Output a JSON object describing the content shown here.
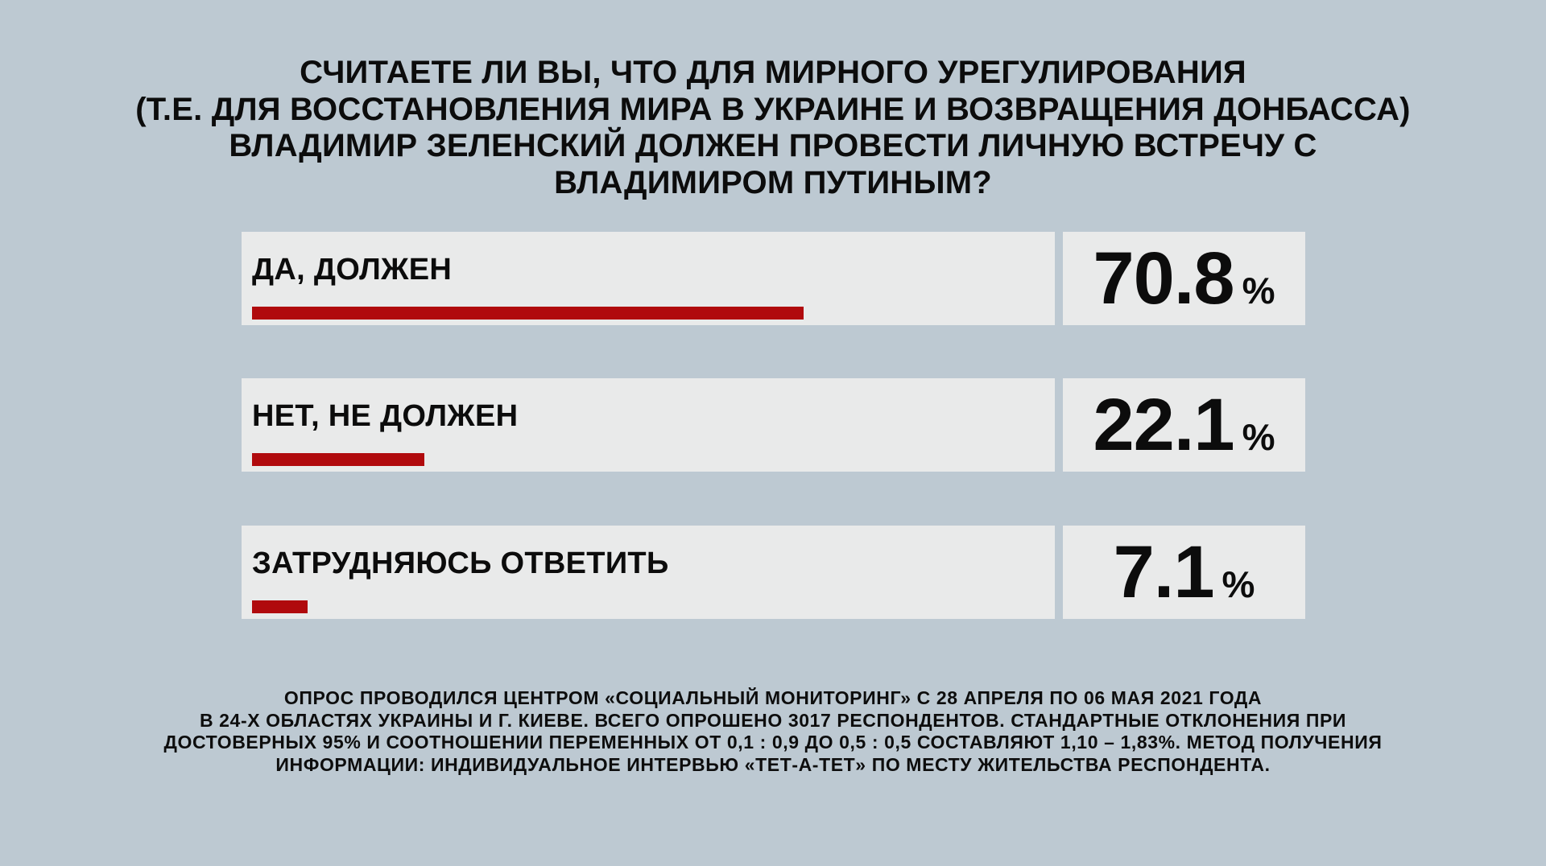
{
  "title": {
    "lines": [
      "СЧИТАЕТЕ ЛИ ВЫ, ЧТО ДЛЯ МИРНОГО УРЕГУЛИРОВАНИЯ",
      "(Т.Е. ДЛЯ ВОССТАНОВЛЕНИЯ МИРА В УКРАИНЕ И ВОЗВРАЩЕНИЯ ДОНБАССА)",
      "ВЛАДИМИР ЗЕЛЕНСКИЙ ДОЛЖЕН ПРОВЕСТИ ЛИЧНУЮ ВСТРЕЧУ С",
      "ВЛАДИМИРОМ ПУТИНЫМ?"
    ]
  },
  "bars": [
    {
      "label": "ДА, ДОЛЖЕН",
      "value": 70.8,
      "display": "70.8",
      "unit": "%"
    },
    {
      "label": "НЕТ, НЕ ДОЛЖЕН",
      "value": 22.1,
      "display": "22.1",
      "unit": "%"
    },
    {
      "label": "ЗАТРУДНЯЮСЬ ОТВЕТИТЬ",
      "value": 7.1,
      "display": "7.1",
      "unit": "%"
    }
  ],
  "footer": {
    "lines": [
      "ОПРОС ПРОВОДИЛСЯ ЦЕНТРОМ «СОЦИАЛЬНЫЙ МОНИТОРИНГ» С 28 АПРЕЛЯ ПО 06 МАЯ 2021 ГОДА",
      "В 24-Х ОБЛАСТЯХ УКРАИНЫ И Г. КИЕВЕ. ВСЕГО ОПРОШЕНО 3017 РЕСПОНДЕНТОВ. СТАНДАРТНЫЕ ОТКЛОНЕНИЯ ПРИ",
      "ДОСТОВЕРНЫХ 95% И СООТНОШЕНИИ ПЕРЕМЕННЫХ ОТ 0,1 : 0,9 ДО 0,5 : 0,5 СОСТАВЛЯЮТ 1,10 – 1,83%. МЕТОД ПОЛУЧЕНИЯ",
      "ИНФОРМАЦИИ: ИНДИВИДУАЛЬНОЕ ИНТЕРВЬЮ «ТЕТ-А-ТЕТ» ПО МЕСТУ ЖИТЕЛЬСТВА РЕСПОНДЕНТА."
    ]
  },
  "colors": {
    "background": "#bdc9d2",
    "panel": "#e9eaea",
    "accent_red": "#b00a0d",
    "text": "#0c0c0c"
  },
  "chart_data": {
    "type": "bar",
    "orientation": "horizontal",
    "title": "СЧИТАЕТЕ ЛИ ВЫ, ЧТО ДЛЯ МИРНОГО УРЕГУЛИРОВАНИЯ (Т.Е. ДЛЯ ВОССТАНОВЛЕНИЯ МИРА В УКРАИНЕ И ВОЗВРАЩЕНИЯ ДОНБАССА) ВЛАДИМИР ЗЕЛЕНСКИЙ ДОЛЖЕН ПРОВЕСТИ ЛИЧНУЮ ВСТРЕЧУ С ВЛАДИМИРОМ ПУТИНЫМ?",
    "categories": [
      "ДА, ДОЛЖЕН",
      "НЕТ, НЕ ДОЛЖЕН",
      "ЗАТРУДНЯЮСЬ ОТВЕТИТЬ"
    ],
    "values": [
      70.8,
      22.1,
      7.1
    ],
    "unit": "%",
    "xlim": [
      0,
      100
    ],
    "bar_color": "#b00a0d",
    "grid": false,
    "legend": false,
    "annotation": "ОПРОС ПРОВОДИЛСЯ ЦЕНТРОМ «СОЦИАЛЬНЫЙ МОНИТОРИНГ» С 28 АПРЕЛЯ ПО 06 МАЯ 2021 ГОДА В 24-Х ОБЛАСТЯХ УКРАИНЫ И Г. КИЕВЕ. ВСЕГО ОПРОШЕНО 3017 РЕСПОНДЕНТОВ. СТАНДАРТНЫЕ ОТКЛОНЕНИЯ ПРИ ДОСТОВЕРНЫХ 95% И СООТНОШЕНИИ ПЕРЕМЕННЫХ ОТ 0,1 : 0,9 ДО 0,5 : 0,5 СОСТАВЛЯЮТ 1,10 – 1,83%. МЕТОД ПОЛУЧЕНИЯ ИНФОРМАЦИИ: ИНДИВИДУАЛЬНОЕ ИНТЕРВЬЮ «ТЕТ-А-ТЕТ» ПО МЕСТУ ЖИТЕЛЬСТВА РЕСПОНДЕНТА."
  }
}
